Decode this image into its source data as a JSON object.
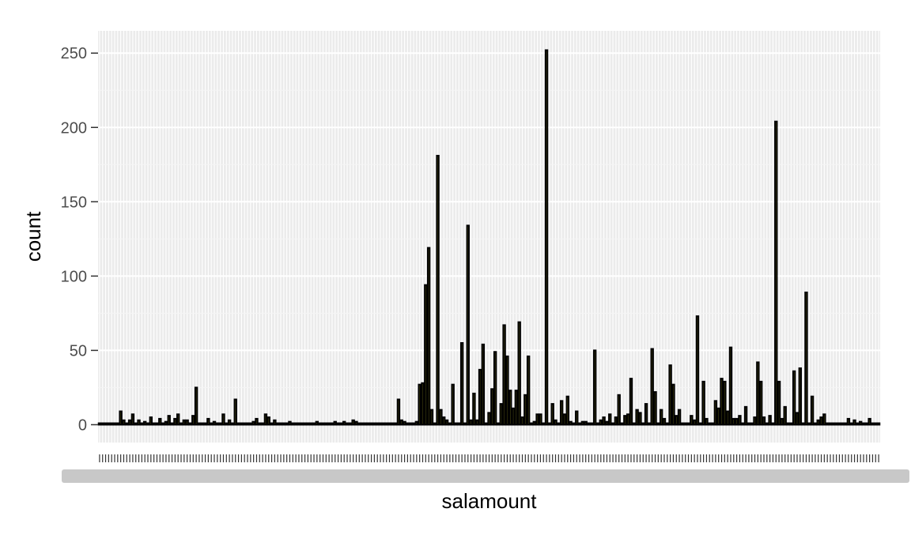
{
  "chart_data": {
    "type": "bar",
    "xlabel": "salamount",
    "ylabel": "count",
    "ylim": [
      0,
      265
    ],
    "y_ticks": [
      0,
      50,
      100,
      150,
      200,
      250
    ],
    "y_tick_labels": [
      "0",
      "50",
      "100",
      "150",
      "200",
      "250"
    ],
    "x_tick_labels_legible": false,
    "grid": true,
    "panel_background": "#ebebeb",
    "bar_fill": "#6b6a1e",
    "bar_outline": "#000000",
    "values": [
      1,
      1,
      1,
      1,
      1,
      1,
      1,
      9,
      3,
      1,
      3,
      7,
      1,
      3,
      1,
      2,
      1,
      5,
      1,
      1,
      4,
      1,
      2,
      6,
      1,
      4,
      7,
      1,
      3,
      3,
      1,
      6,
      25,
      1,
      1,
      1,
      4,
      1,
      2,
      1,
      1,
      7,
      1,
      3,
      1,
      17,
      1,
      1,
      1,
      1,
      1,
      2,
      4,
      1,
      1,
      7,
      5,
      1,
      3,
      1,
      1,
      1,
      1,
      2,
      1,
      1,
      1,
      1,
      1,
      1,
      1,
      1,
      2,
      1,
      1,
      1,
      1,
      1,
      2,
      1,
      1,
      2,
      1,
      1,
      3,
      2,
      1,
      1,
      1,
      1,
      1,
      1,
      1,
      1,
      1,
      1,
      1,
      1,
      1,
      17,
      3,
      2,
      1,
      1,
      1,
      2,
      27,
      28,
      94,
      119,
      10,
      1,
      181,
      10,
      5,
      3,
      1,
      27,
      1,
      1,
      55,
      1,
      134,
      3,
      21,
      3,
      37,
      54,
      1,
      8,
      24,
      49,
      1,
      14,
      67,
      46,
      23,
      11,
      23,
      69,
      5,
      20,
      46,
      1,
      2,
      7,
      7,
      1,
      252,
      1,
      14,
      3,
      1,
      16,
      7,
      19,
      2,
      1,
      9,
      1,
      2,
      2,
      1,
      1,
      50,
      1,
      3,
      5,
      2,
      7,
      1,
      5,
      20,
      1,
      6,
      7,
      31,
      1,
      10,
      8,
      1,
      14,
      1,
      51,
      22,
      1,
      10,
      4,
      1,
      40,
      27,
      6,
      10,
      1,
      1,
      1,
      6,
      3,
      73,
      1,
      29,
      4,
      1,
      1,
      16,
      11,
      31,
      29,
      9,
      52,
      4,
      4,
      6,
      1,
      12,
      1,
      1,
      5,
      42,
      29,
      5,
      1,
      6,
      1,
      204,
      29,
      4,
      12,
      1,
      1,
      36,
      8,
      38,
      1,
      89,
      1,
      19,
      1,
      3,
      5,
      7,
      1,
      1,
      1,
      1,
      1,
      1,
      1,
      4,
      1,
      3,
      1,
      2,
      1,
      1,
      4,
      1,
      1,
      1
    ]
  }
}
